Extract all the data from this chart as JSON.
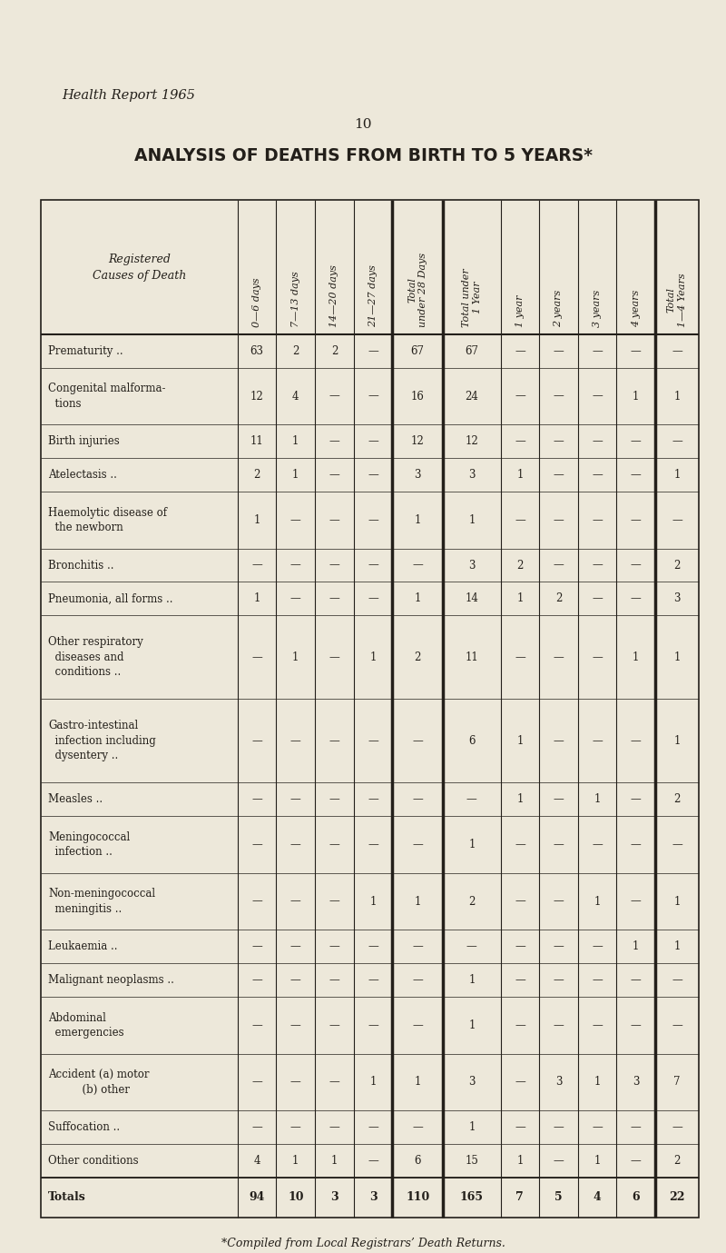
{
  "title": "ANALYSIS OF DEATHS FROM BIRTH TO 5 YEARS*",
  "header_report": "Health Report 1965",
  "page_number": "10",
  "footnote": "*Compiled from Local Registrars’ Death Returns.",
  "rows": [
    {
      "cause": [
        "Prematurity ..",
        ""
      ],
      "vals": [
        "63",
        "2",
        "2",
        "—",
        "67",
        "67",
        "—",
        "—",
        "—",
        "—",
        "—"
      ],
      "is_total": false
    },
    {
      "cause": [
        "Congenital malforma-",
        "  tions"
      ],
      "vals": [
        "12",
        "4",
        "—",
        "—",
        "16",
        "24",
        "—",
        "—",
        "—",
        "1",
        "1"
      ],
      "is_total": false
    },
    {
      "cause": [
        "Birth injuries",
        ""
      ],
      "vals": [
        "11",
        "1",
        "—",
        "—",
        "12",
        "12",
        "—",
        "—",
        "—",
        "—",
        "—"
      ],
      "is_total": false
    },
    {
      "cause": [
        "Atelectasis ..",
        ""
      ],
      "vals": [
        "2",
        "1",
        "—",
        "—",
        "3",
        "3",
        "1",
        "—",
        "—",
        "—",
        "1"
      ],
      "is_total": false
    },
    {
      "cause": [
        "Haemolytic disease of",
        "  the newborn"
      ],
      "vals": [
        "1",
        "—",
        "—",
        "—",
        "1",
        "1",
        "—",
        "—",
        "—",
        "—",
        "—"
      ],
      "is_total": false
    },
    {
      "cause": [
        "Bronchitis ..",
        ""
      ],
      "vals": [
        "—",
        "—",
        "—",
        "—",
        "—",
        "3",
        "2",
        "—",
        "—",
        "—",
        "2"
      ],
      "is_total": false
    },
    {
      "cause": [
        "Pneumonia, all forms ..",
        ""
      ],
      "vals": [
        "1",
        "—",
        "—",
        "—",
        "1",
        "14",
        "1",
        "2",
        "—",
        "—",
        "3"
      ],
      "is_total": false
    },
    {
      "cause": [
        "Other respiratory",
        "  diseases and",
        "  conditions .."
      ],
      "vals": [
        "—",
        "1",
        "—",
        "1",
        "2",
        "11",
        "—",
        "—",
        "—",
        "1",
        "1"
      ],
      "is_total": false
    },
    {
      "cause": [
        "Gastro-intestinal",
        "  infection including",
        "  dysentery .."
      ],
      "vals": [
        "—",
        "—",
        "—",
        "—",
        "—",
        "6",
        "1",
        "—",
        "—",
        "—",
        "1"
      ],
      "is_total": false
    },
    {
      "cause": [
        "Measles ..",
        ""
      ],
      "vals": [
        "—",
        "—",
        "—",
        "—",
        "—",
        "—",
        "1",
        "—",
        "1",
        "—",
        "2"
      ],
      "is_total": false
    },
    {
      "cause": [
        "Meningococcal",
        "  infection .."
      ],
      "vals": [
        "—",
        "—",
        "—",
        "—",
        "—",
        "1",
        "—",
        "—",
        "—",
        "—",
        "—"
      ],
      "is_total": false
    },
    {
      "cause": [
        "Non-meningococcal",
        "  meningitis .."
      ],
      "vals": [
        "—",
        "—",
        "—",
        "1",
        "1",
        "2",
        "—",
        "—",
        "1",
        "—",
        "1"
      ],
      "is_total": false
    },
    {
      "cause": [
        "Leukaemia ..",
        ""
      ],
      "vals": [
        "—",
        "—",
        "—",
        "—",
        "—",
        "—",
        "—",
        "—",
        "—",
        "1",
        "1"
      ],
      "is_total": false
    },
    {
      "cause": [
        "Malignant neoplasms ..",
        ""
      ],
      "vals": [
        "—",
        "—",
        "—",
        "—",
        "—",
        "1",
        "—",
        "—",
        "—",
        "—",
        "—"
      ],
      "is_total": false
    },
    {
      "cause": [
        "Abdominal",
        "  emergencies"
      ],
      "vals": [
        "—",
        "—",
        "—",
        "—",
        "—",
        "1",
        "—",
        "—",
        "—",
        "—",
        "—"
      ],
      "is_total": false
    },
    {
      "cause": [
        "Accident (a) motor",
        "          (b) other"
      ],
      "vals": [
        "—",
        "—",
        "—",
        "1",
        "1",
        "3",
        "—",
        "3",
        "1",
        "3",
        "7"
      ],
      "is_total": false
    },
    {
      "cause": [
        "Suffocation ..",
        ""
      ],
      "vals": [
        "—",
        "—",
        "—",
        "—",
        "—",
        "1",
        "—",
        "—",
        "—",
        "—",
        "—"
      ],
      "is_total": false
    },
    {
      "cause": [
        "Other conditions",
        ""
      ],
      "vals": [
        "4",
        "1",
        "1",
        "—",
        "6",
        "15",
        "1",
        "—",
        "1",
        "—",
        "2"
      ],
      "is_total": false
    },
    {
      "cause": [
        "Totals",
        ""
      ],
      "vals": [
        "94",
        "10",
        "3",
        "3",
        "110",
        "165",
        "7",
        "5",
        "4",
        "6",
        "22"
      ],
      "is_total": true
    }
  ],
  "col_headers_rotated": [
    "0—6 days",
    "7—13 days",
    "14—20 days",
    "21—27 days",
    "Total\nunder 28 Days",
    "Total under\n1 Year",
    "1 year",
    "2 years",
    "3 years",
    "4 years",
    "Total\n1—4 Years"
  ],
  "bg_color": "#ede8da",
  "text_color": "#231f1a",
  "line_color": "#231f1a",
  "col_widths_rel": [
    2.8,
    0.55,
    0.55,
    0.55,
    0.55,
    0.72,
    0.82,
    0.55,
    0.55,
    0.55,
    0.55,
    0.62
  ],
  "row_heights_rel": [
    1.0,
    1.7,
    1.0,
    1.0,
    1.7,
    1.0,
    1.0,
    2.5,
    2.5,
    1.0,
    1.7,
    1.7,
    1.0,
    1.0,
    1.7,
    1.7,
    1.0,
    1.0,
    1.2
  ]
}
